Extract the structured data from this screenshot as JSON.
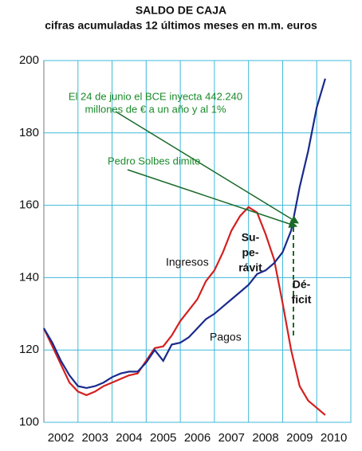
{
  "chart_data": {
    "type": "line",
    "title": "SALDO DE CAJA",
    "subtitle": "cifras acumuladas 12 últimos meses en m.m. euros",
    "x": [
      2002.0,
      2002.25,
      2002.5,
      2002.75,
      2003.0,
      2003.25,
      2003.5,
      2003.75,
      2004.0,
      2004.25,
      2004.5,
      2004.75,
      2005.0,
      2005.25,
      2005.5,
      2005.75,
      2006.0,
      2006.25,
      2006.5,
      2006.75,
      2007.0,
      2007.25,
      2007.5,
      2007.75,
      2008.0,
      2008.25,
      2008.5,
      2008.75,
      2009.0,
      2009.25,
      2009.5,
      2009.75,
      2010.0,
      2010.25
    ],
    "series": [
      {
        "name": "Ingresos",
        "color": "#d42020",
        "values": [
          126,
          121,
          116,
          111,
          108.5,
          107.5,
          108.5,
          110,
          111,
          112,
          113,
          113.5,
          117,
          120.5,
          121,
          124,
          128,
          131,
          134,
          139,
          142,
          147,
          153,
          157,
          159.5,
          158,
          152,
          145,
          133,
          120,
          110,
          106,
          104,
          102
        ]
      },
      {
        "name": "Pagos",
        "color": "#1a2a8c",
        "values": [
          126,
          122,
          117,
          113,
          110,
          109.5,
          110,
          111,
          112.5,
          113.5,
          114,
          114,
          116.5,
          120,
          117,
          121.5,
          122,
          123.5,
          126,
          128.5,
          130,
          132,
          134,
          136,
          138,
          141,
          142,
          144,
          147,
          153,
          165,
          175,
          187,
          195
        ]
      }
    ],
    "xlim": [
      2002,
      2011
    ],
    "xticks": [
      {
        "value": 2002.5,
        "label": "2002"
      },
      {
        "value": 2003.5,
        "label": "2003"
      },
      {
        "value": 2004.5,
        "label": "2004"
      },
      {
        "value": 2005.5,
        "label": "2005"
      },
      {
        "value": 2006.5,
        "label": "2006"
      },
      {
        "value": 2007.5,
        "label": "2007"
      },
      {
        "value": 2008.5,
        "label": "2008"
      },
      {
        "value": 2009.5,
        "label": "2009"
      },
      {
        "value": 2010.5,
        "label": "2010"
      }
    ],
    "ylim": [
      100,
      200
    ],
    "yticks": [
      100,
      120,
      140,
      160,
      180,
      200
    ],
    "grid": true,
    "annotations": [
      {
        "lines": [
          "El 24 de junio el BCE inyecta 442.240",
          "millones de € a un año y al 1%"
        ]
      },
      {
        "lines": [
          "Pedro Solbes dimite"
        ]
      },
      {
        "lines": [
          "Su-",
          "pe-",
          "rávit"
        ]
      },
      {
        "lines": [
          "Dé-",
          "ficit"
        ]
      }
    ]
  }
}
